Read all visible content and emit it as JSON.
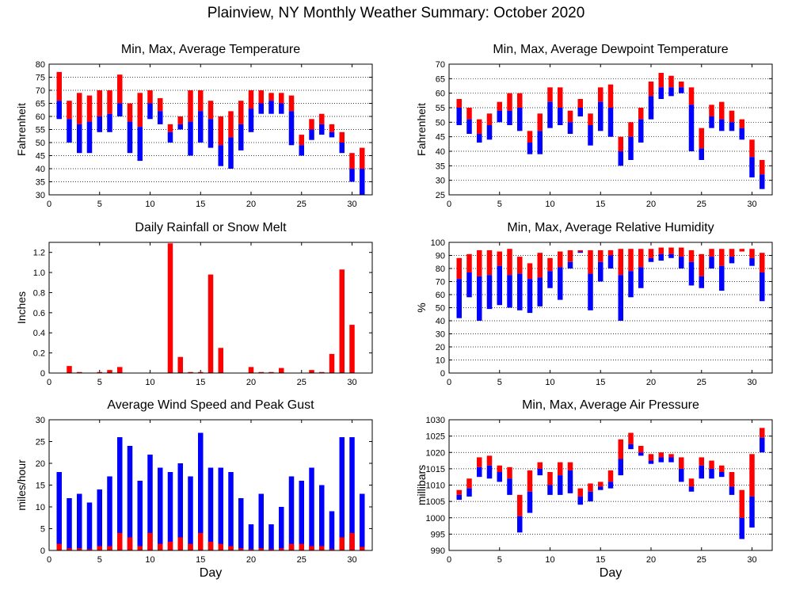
{
  "page": {
    "title": "Plainview, NY Monthly Weather Summary: October 2020"
  },
  "colors": {
    "max_segment": "#ff0000",
    "min_segment": "#0000ff",
    "grid": "#000000",
    "background": "#ffffff"
  },
  "chart_data": [
    {
      "id": "temperature",
      "type": "bar",
      "title": "Min, Max, Average Temperature",
      "xlabel": "",
      "ylabel": "Fahrenheit",
      "xlim": [
        0,
        32
      ],
      "ylim": [
        30,
        80
      ],
      "x_ticks": [
        0,
        5,
        10,
        15,
        20,
        25,
        30
      ],
      "y_ticks": [
        30,
        35,
        40,
        45,
        50,
        55,
        60,
        65,
        70,
        75,
        80
      ],
      "grid": true,
      "days": [
        1,
        2,
        3,
        4,
        5,
        6,
        7,
        8,
        9,
        10,
        11,
        12,
        13,
        14,
        15,
        16,
        17,
        18,
        19,
        20,
        21,
        22,
        23,
        24,
        25,
        26,
        27,
        28,
        29,
        30,
        31
      ],
      "min": [
        59,
        50,
        46,
        46,
        54,
        54,
        60,
        46,
        43,
        59,
        57,
        50,
        55,
        45,
        50,
        48,
        41,
        40,
        47,
        54,
        61,
        61,
        61,
        49,
        45,
        51,
        53,
        52,
        46,
        35,
        30
      ],
      "avg": [
        66,
        59,
        57,
        58,
        60,
        61,
        65,
        58,
        56,
        65,
        62,
        54,
        57,
        58,
        62,
        59,
        49,
        52,
        57,
        63,
        65,
        66,
        65,
        62,
        49,
        55,
        57,
        54,
        50,
        40,
        40
      ],
      "max": [
        77,
        66,
        69,
        68,
        70,
        70,
        76,
        65,
        69,
        70,
        67,
        57,
        60,
        70,
        70,
        66,
        60,
        62,
        66,
        70,
        70,
        69,
        69,
        68,
        53,
        59,
        61,
        57,
        54,
        46,
        48
      ]
    },
    {
      "id": "dewpoint",
      "type": "bar",
      "title": "Min, Max, Average Dewpoint Temperature",
      "xlabel": "",
      "ylabel": "Fahrenheit",
      "xlim": [
        0,
        32
      ],
      "ylim": [
        25,
        70
      ],
      "x_ticks": [
        0,
        5,
        10,
        15,
        20,
        25,
        30
      ],
      "y_ticks": [
        25,
        30,
        35,
        40,
        45,
        50,
        55,
        60,
        65,
        70
      ],
      "grid": true,
      "days": [
        1,
        2,
        3,
        4,
        5,
        6,
        7,
        8,
        9,
        10,
        11,
        12,
        13,
        14,
        15,
        16,
        17,
        18,
        19,
        20,
        21,
        22,
        23,
        24,
        25,
        26,
        27,
        28,
        29,
        30,
        31
      ],
      "min": [
        49,
        46,
        43,
        44,
        50,
        49,
        47,
        39,
        39,
        48,
        49,
        46,
        52,
        42,
        47,
        45,
        35,
        37,
        43,
        51,
        58,
        59,
        60,
        40,
        37,
        48,
        47,
        47,
        44,
        31,
        27
      ],
      "avg": [
        55,
        51,
        46,
        49,
        54,
        54,
        55,
        43,
        47,
        57,
        55,
        50,
        55,
        49,
        57,
        55,
        40,
        45,
        51,
        59,
        62,
        62,
        62,
        56,
        41,
        52,
        51,
        50,
        48,
        38,
        32
      ],
      "max": [
        58,
        55,
        51,
        53,
        57,
        60,
        60,
        47,
        53,
        62,
        62,
        54,
        58,
        53,
        62,
        63,
        45,
        50,
        55,
        64,
        67,
        66,
        64,
        62,
        48,
        56,
        57,
        54,
        51,
        44,
        37
      ]
    },
    {
      "id": "rainfall",
      "type": "bar",
      "title": "Daily Rainfall or Snow Melt",
      "xlabel": "",
      "ylabel": "Inches",
      "xlim": [
        0,
        32
      ],
      "ylim": [
        0,
        1.3
      ],
      "x_ticks": [
        0,
        5,
        10,
        15,
        20,
        25,
        30
      ],
      "y_ticks": [
        "0",
        "0.2",
        "0.4",
        "0.6",
        "0.8",
        "1.0",
        "1.2"
      ],
      "grid": false,
      "days": [
        1,
        2,
        3,
        4,
        5,
        6,
        7,
        8,
        9,
        10,
        11,
        12,
        13,
        14,
        15,
        16,
        17,
        18,
        19,
        20,
        21,
        22,
        23,
        24,
        25,
        26,
        27,
        28,
        29,
        30,
        31
      ],
      "values": [
        0,
        0.07,
        0.01,
        0,
        0.01,
        0.03,
        0.06,
        0,
        0,
        0,
        0,
        1.29,
        0.16,
        0.01,
        0.01,
        0.98,
        0.25,
        0,
        0,
        0.06,
        0.01,
        0.01,
        0.05,
        0,
        0,
        0.03,
        0.01,
        0.19,
        1.03,
        0.48,
        0
      ]
    },
    {
      "id": "humidity",
      "type": "bar",
      "title": "Min, Max, Average Relative Humidity",
      "xlabel": "",
      "ylabel": "%",
      "xlim": [
        0,
        32
      ],
      "ylim": [
        0,
        100
      ],
      "x_ticks": [
        0,
        5,
        10,
        15,
        20,
        25,
        30
      ],
      "y_ticks": [
        0,
        10,
        20,
        30,
        40,
        50,
        60,
        70,
        80,
        90,
        100
      ],
      "grid": true,
      "days": [
        1,
        2,
        3,
        4,
        5,
        6,
        7,
        8,
        9,
        10,
        11,
        12,
        13,
        14,
        15,
        16,
        17,
        18,
        19,
        20,
        21,
        22,
        23,
        24,
        25,
        26,
        27,
        28,
        29,
        30,
        31
      ],
      "min": [
        42,
        58,
        40,
        49,
        52,
        50,
        48,
        46,
        51,
        65,
        56,
        80,
        92,
        48,
        70,
        80,
        40,
        58,
        65,
        85,
        86,
        88,
        80,
        67,
        65,
        80,
        63,
        84,
        93,
        82,
        55
      ],
      "avg": [
        72,
        77,
        74,
        75,
        82,
        75,
        76,
        72,
        73,
        78,
        81,
        85,
        93,
        76,
        85,
        90,
        75,
        78,
        81,
        88,
        91,
        91,
        89,
        85,
        74,
        89,
        82,
        89,
        93,
        88,
        77
      ],
      "max": [
        88,
        91,
        94,
        94,
        93,
        95,
        89,
        84,
        92,
        88,
        93,
        94,
        94,
        94,
        94,
        94,
        95,
        95,
        95,
        95,
        96,
        96,
        96,
        94,
        91,
        95,
        95,
        95,
        95,
        95,
        92
      ]
    },
    {
      "id": "wind",
      "type": "bar",
      "title": "Average Wind Speed and Peak Gust",
      "xlabel": "Day",
      "ylabel": "miles/hour",
      "xlim": [
        0,
        32
      ],
      "ylim": [
        0,
        30
      ],
      "x_ticks": [
        0,
        5,
        10,
        15,
        20,
        25,
        30
      ],
      "y_ticks": [
        0,
        5,
        10,
        15,
        20,
        25,
        30
      ],
      "grid": false,
      "days": [
        1,
        2,
        3,
        4,
        5,
        6,
        7,
        8,
        9,
        10,
        11,
        12,
        13,
        14,
        15,
        16,
        17,
        18,
        19,
        20,
        21,
        22,
        23,
        24,
        25,
        26,
        27,
        28,
        29,
        30,
        31
      ],
      "gust": [
        18,
        12,
        13,
        11,
        14,
        17,
        26,
        24,
        16,
        22,
        19,
        18,
        20,
        17,
        27,
        19,
        19,
        18,
        12,
        6,
        13,
        6,
        10,
        17,
        16,
        19,
        15,
        9,
        26,
        26,
        13
      ],
      "avg": [
        1.5,
        0.5,
        0.5,
        0.3,
        1,
        1,
        4,
        3,
        1,
        4,
        1.5,
        2,
        3,
        1.5,
        4,
        2,
        1.5,
        1,
        0.5,
        0.3,
        0.5,
        0.3,
        0.5,
        1.5,
        1.5,
        1,
        1,
        0.3,
        3,
        4,
        0.8
      ]
    },
    {
      "id": "pressure",
      "type": "bar",
      "title": "Min, Max, Average Air Pressure",
      "xlabel": "Day",
      "ylabel": "millibars",
      "xlim": [
        0,
        32
      ],
      "ylim": [
        990,
        1030
      ],
      "x_ticks": [
        0,
        5,
        10,
        15,
        20,
        25,
        30
      ],
      "y_ticks": [
        990,
        995,
        1000,
        1005,
        1010,
        1015,
        1020,
        1025,
        1030
      ],
      "grid": true,
      "days": [
        1,
        2,
        3,
        4,
        5,
        6,
        7,
        8,
        9,
        10,
        11,
        12,
        13,
        14,
        15,
        16,
        17,
        18,
        19,
        20,
        21,
        22,
        23,
        24,
        25,
        26,
        27,
        28,
        29,
        30,
        31
      ],
      "min": [
        1005.5,
        1006.5,
        1012.5,
        1012,
        1011,
        1007,
        995.5,
        1001.5,
        1013,
        1007,
        1007,
        1007.5,
        1004,
        1005,
        1008.5,
        1009,
        1013,
        1021,
        1019,
        1016.5,
        1017,
        1017,
        1011,
        1008,
        1012,
        1012,
        1012.5,
        1007,
        993.5,
        997,
        1020
      ],
      "avg": [
        1007,
        1009,
        1015.5,
        1016,
        1014,
        1012,
        1000.5,
        1008,
        1015,
        1010,
        1013,
        1014.5,
        1006.5,
        1008,
        1009.5,
        1011,
        1018,
        1022.5,
        1020,
        1017.5,
        1018.5,
        1018.5,
        1015,
        1009.5,
        1016,
        1015,
        1014,
        1009.5,
        1000,
        1006.5,
        1024.5
      ],
      "max": [
        1008.5,
        1012,
        1018.5,
        1019,
        1016,
        1015.5,
        1007,
        1014.5,
        1017,
        1014,
        1017,
        1017,
        1009,
        1010.5,
        1011,
        1014.5,
        1024,
        1026,
        1022,
        1019.5,
        1020,
        1019.5,
        1018.5,
        1012,
        1018.5,
        1017.5,
        1016,
        1014,
        1008.5,
        1019.5,
        1027.5
      ]
    }
  ]
}
